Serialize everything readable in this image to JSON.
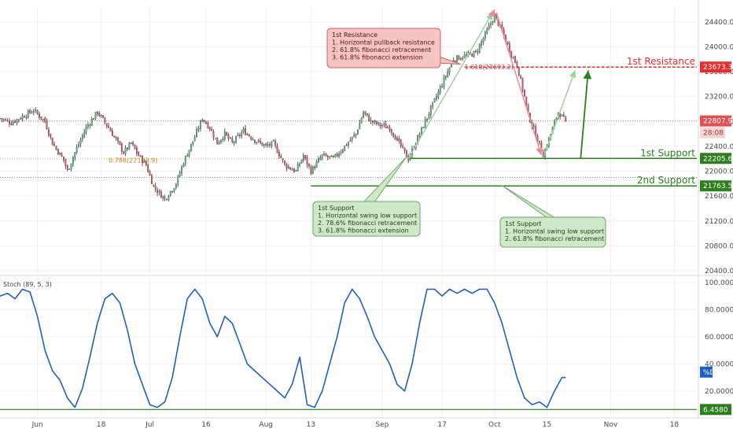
{
  "chart_data": [
    {
      "type": "candlestick",
      "panel": "price",
      "x_labels": [
        "Jun",
        "18",
        "Jul",
        "16",
        "Aug",
        "13",
        "Sep",
        "17",
        "Oct",
        "15",
        "Nov",
        "18"
      ],
      "x_ticks": [
        {
          "label": "Jun",
          "day": 0
        },
        {
          "label": "18",
          "day": 17
        },
        {
          "label": "Jul",
          "day": 30
        },
        {
          "label": "16",
          "day": 45
        },
        {
          "label": "Aug",
          "day": 61
        },
        {
          "label": "13",
          "day": 73
        },
        {
          "label": "Sep",
          "day": 92
        },
        {
          "label": "17",
          "day": 108
        },
        {
          "label": "Oct",
          "day": 122
        },
        {
          "label": "15",
          "day": 136
        },
        {
          "label": "Nov",
          "day": 153
        },
        {
          "label": "18",
          "day": 170
        }
      ],
      "y_ticks": [
        20400,
        20800,
        21200,
        21600,
        22000,
        22400,
        22800,
        23200,
        23600,
        24000,
        24400
      ],
      "y_tick_labels": [
        "20400.0",
        "20800.0",
        "21200.0",
        "21600.0",
        "22000.0",
        "22400.0",
        "22800.0",
        "23200.0",
        "23600.0",
        "24000.0",
        "24400.0"
      ],
      "ylim": [
        20350,
        24650
      ],
      "xlim": [
        -10,
        176
      ],
      "last_price": 22807.9,
      "last_price_label": "22807.9",
      "countdown_label": "28:08",
      "anchors": [
        {
          "day": -10,
          "price": 22850
        },
        {
          "day": -7,
          "price": 22780
        },
        {
          "day": -4,
          "price": 22880
        },
        {
          "day": -1,
          "price": 22980
        },
        {
          "day": 2,
          "price": 22800
        },
        {
          "day": 4,
          "price": 22450
        },
        {
          "day": 7,
          "price": 22180
        },
        {
          "day": 8,
          "price": 22000
        },
        {
          "day": 10,
          "price": 22300
        },
        {
          "day": 13,
          "price": 22700
        },
        {
          "day": 16,
          "price": 22950
        },
        {
          "day": 19,
          "price": 22700
        },
        {
          "day": 21,
          "price": 22500
        },
        {
          "day": 23,
          "price": 22300
        },
        {
          "day": 25,
          "price": 22450
        },
        {
          "day": 27,
          "price": 22250
        },
        {
          "day": 29,
          "price": 22100
        },
        {
          "day": 31,
          "price": 21750
        },
        {
          "day": 34,
          "price": 21550
        },
        {
          "day": 37,
          "price": 21800
        },
        {
          "day": 39,
          "price": 22150
        },
        {
          "day": 42,
          "price": 22550
        },
        {
          "day": 44,
          "price": 22850
        },
        {
          "day": 46,
          "price": 22700
        },
        {
          "day": 48,
          "price": 22450
        },
        {
          "day": 50,
          "price": 22600
        },
        {
          "day": 52,
          "price": 22450
        },
        {
          "day": 55,
          "price": 22650
        },
        {
          "day": 58,
          "price": 22500
        },
        {
          "day": 61,
          "price": 22400
        },
        {
          "day": 63,
          "price": 22450
        },
        {
          "day": 66,
          "price": 22100
        },
        {
          "day": 69,
          "price": 22000
        },
        {
          "day": 71,
          "price": 22250
        },
        {
          "day": 73,
          "price": 22000
        },
        {
          "day": 76,
          "price": 22250
        },
        {
          "day": 79,
          "price": 22200
        },
        {
          "day": 82,
          "price": 22400
        },
        {
          "day": 85,
          "price": 22600
        },
        {
          "day": 87,
          "price": 22950
        },
        {
          "day": 89,
          "price": 22800
        },
        {
          "day": 91,
          "price": 22750
        },
        {
          "day": 94,
          "price": 22700
        },
        {
          "day": 97,
          "price": 22400
        },
        {
          "day": 99,
          "price": 22200
        },
        {
          "day": 102,
          "price": 22600
        },
        {
          "day": 105,
          "price": 23000
        },
        {
          "day": 108,
          "price": 23400
        },
        {
          "day": 111,
          "price": 23800
        },
        {
          "day": 114,
          "price": 23850
        },
        {
          "day": 117,
          "price": 23900
        },
        {
          "day": 120,
          "price": 24250
        },
        {
          "day": 122,
          "price": 24500
        },
        {
          "day": 124,
          "price": 24250
        },
        {
          "day": 126,
          "price": 23950
        },
        {
          "day": 128,
          "price": 23700
        },
        {
          "day": 130,
          "price": 23200
        },
        {
          "day": 131,
          "price": 22900
        },
        {
          "day": 133,
          "price": 22600
        },
        {
          "day": 135,
          "price": 22250
        },
        {
          "day": 137,
          "price": 22600
        },
        {
          "day": 139,
          "price": 22950
        },
        {
          "day": 141,
          "price": 22807.9
        }
      ],
      "annotations": [
        {
          "label": "1st Resistance",
          "price": 23673.3,
          "price_label": "23673.3",
          "color": "#e03030"
        },
        {
          "label": "1st Support",
          "price": 22205.6,
          "price_label": "22205.6",
          "color": "#2e7d1e"
        },
        {
          "label": "2nd Support",
          "price": 21763.5,
          "price_label": "21763.5",
          "color": "#2e7d1e"
        }
      ],
      "fib_labels": [
        {
          "text": "0.786(22153.9)",
          "day": 19,
          "price": 22140
        },
        {
          "text": "1.618(23693.2)",
          "day": 114,
          "price": 23640
        }
      ],
      "callouts": [
        {
          "id": "resistance-callout",
          "lines": [
            "1st Resistance",
            "1. Horizontal pullback resistance",
            "2. 61.8% fibonacci retracement",
            "3. 61.8% fibonacci extension"
          ],
          "theme": "red"
        },
        {
          "id": "support-callout-left",
          "lines": [
            "1st Support",
            "1. Horizontal swing low support",
            "2. 78.6% fibonacci retracement",
            "3. 61.8% fibonacci extension"
          ],
          "theme": "green"
        },
        {
          "id": "support-callout-right",
          "lines": [
            "1st Support",
            "1. Horizontal swing low support",
            "2. 61.8% fibonacci retracement"
          ],
          "theme": "green"
        }
      ],
      "colors": {
        "up": "#53b987",
        "down": "#eb4d5c",
        "wick": "#333333",
        "grid": "#f0f0f0"
      }
    },
    {
      "type": "line",
      "panel": "stochastic",
      "title": "Stoch (89, 5, 3)",
      "y_ticks": [
        20,
        40,
        60,
        80,
        100
      ],
      "y_tick_labels": [
        "20.0000",
        "40.0000",
        "60.0000",
        "80.0000",
        "100.0000"
      ],
      "ylim": [
        2,
        104
      ],
      "current_label": "%D",
      "low_level": 6.458,
      "low_level_label": "6.4580",
      "series_color": "#1f5fbf",
      "series": [
        {
          "x": [
            -10,
            -8,
            -6,
            -4,
            -2,
            0,
            2,
            4,
            6,
            8,
            10,
            12,
            14,
            16,
            18,
            20,
            22,
            24,
            26,
            28,
            30,
            32,
            34,
            36,
            38,
            40,
            42,
            44,
            46,
            48,
            50,
            52,
            54,
            56,
            58,
            60,
            62,
            64,
            66,
            68,
            70,
            72,
            74,
            76,
            78,
            80,
            82,
            84,
            86,
            88,
            90,
            92,
            94,
            96,
            98,
            100,
            102,
            104,
            106,
            108,
            110,
            112,
            114,
            116,
            118,
            120,
            122,
            124,
            126,
            128,
            130,
            132,
            134,
            136,
            138,
            140,
            141
          ],
          "y": [
            90,
            92,
            88,
            95,
            93,
            75,
            50,
            35,
            28,
            15,
            8,
            22,
            45,
            70,
            88,
            92,
            85,
            65,
            40,
            25,
            10,
            8,
            12,
            30,
            60,
            88,
            95,
            88,
            70,
            60,
            75,
            70,
            55,
            40,
            35,
            30,
            25,
            20,
            15,
            25,
            45,
            10,
            8,
            20,
            40,
            60,
            85,
            95,
            88,
            75,
            60,
            50,
            40,
            25,
            20,
            40,
            70,
            95,
            95,
            90,
            95,
            92,
            95,
            92,
            95,
            95,
            85,
            70,
            50,
            30,
            15,
            10,
            12,
            8,
            20,
            30,
            30
          ]
        }
      ]
    }
  ]
}
